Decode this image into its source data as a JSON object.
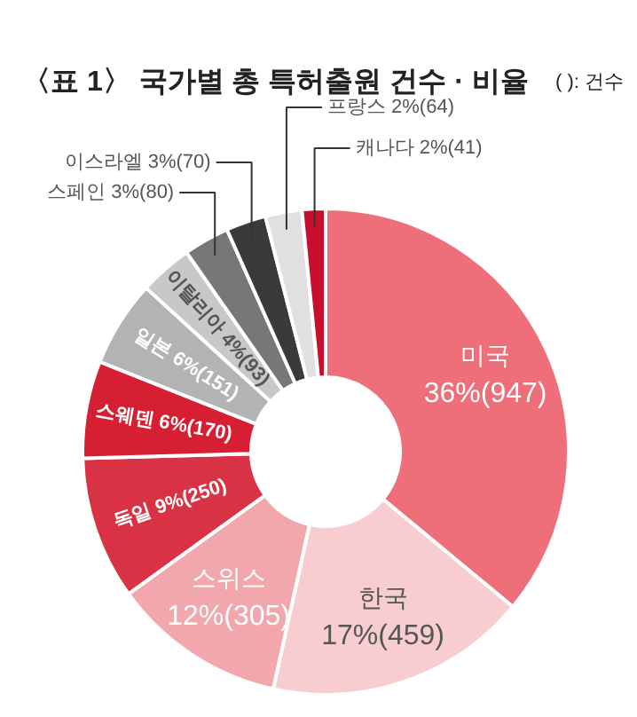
{
  "chart_data": {
    "type": "donut",
    "title": "〈표 1〉 국가별 총 특허출원 건수 · 비율",
    "annotations": [
      "( ): 건수"
    ],
    "categories": [
      "미국",
      "한국",
      "스위스",
      "독일",
      "스웨덴",
      "일본",
      "이탈리아",
      "스페인",
      "이스라엘",
      "프랑스",
      "캐나다"
    ],
    "values": [
      947,
      459,
      305,
      250,
      170,
      151,
      93,
      80,
      70,
      64,
      41
    ],
    "value_labels": [
      "36%(947)",
      "17%(459)",
      "12%(305)",
      "9%(250)",
      "6%(170)",
      "6%(151)",
      "4%(93)",
      "3%(80)",
      "3%(70)",
      "2%(64)",
      "2%(41)"
    ],
    "colors": [
      "#ee6f7a",
      "#f7cdd0",
      "#f2a7ad",
      "#d93244",
      "#d61f33",
      "#b3b3b5",
      "#c8c8ca",
      "#77777a",
      "#3a3a3c",
      "#e0e0e0",
      "#c8102e"
    ]
  }
}
